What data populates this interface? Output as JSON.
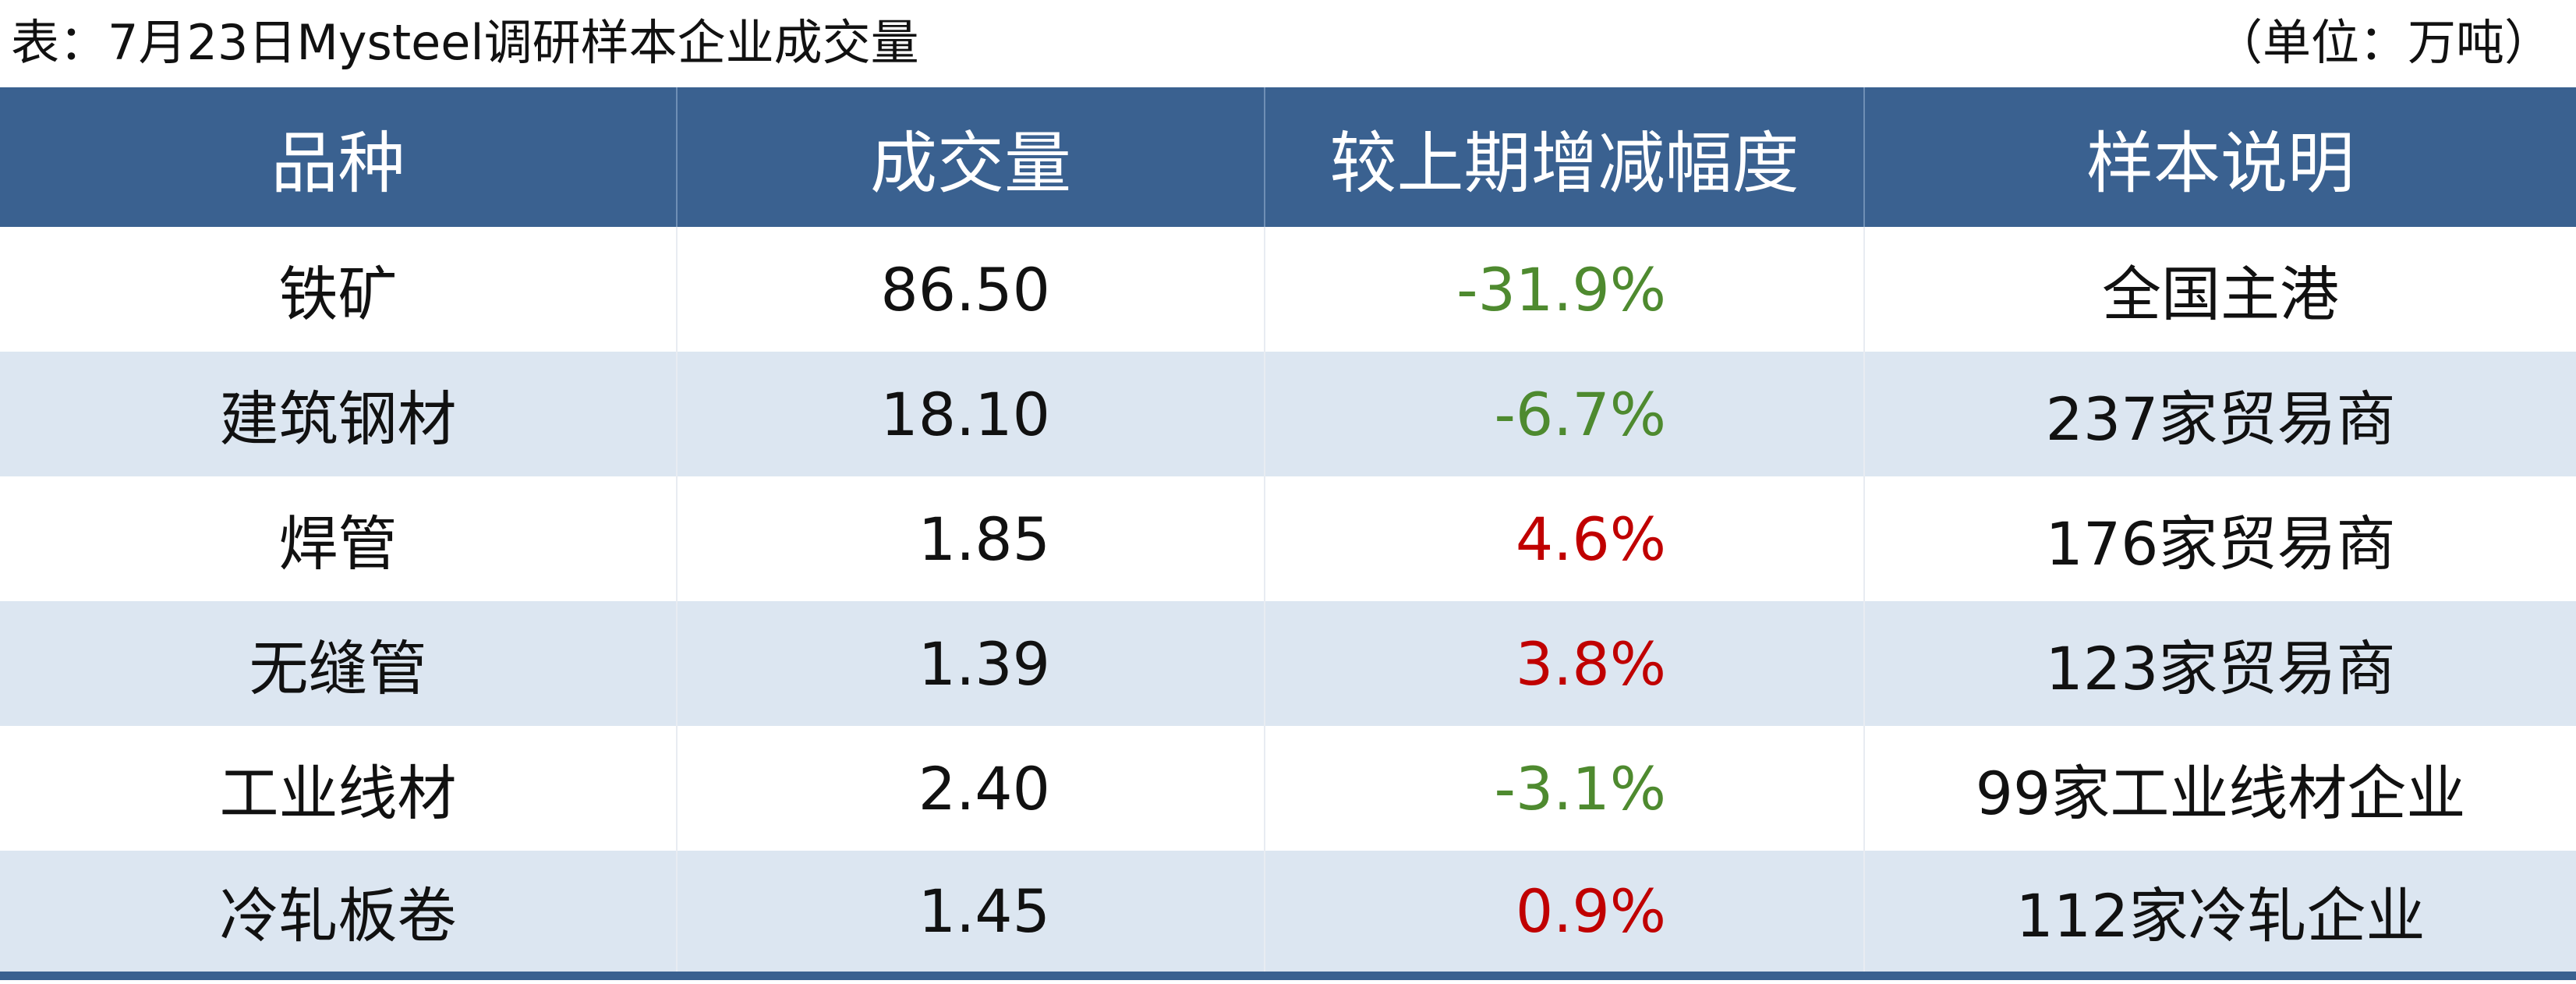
{
  "title": "表：7月23日Mysteel调研样本企业成交量",
  "unit": "（单位：万吨）",
  "table": {
    "header": [
      "品种",
      "成交量",
      "较上期增减幅度",
      "样本说明"
    ],
    "rows": [
      [
        "铁矿",
        "86.50",
        "-31.9%",
        "全国主港"
      ],
      [
        "建筑钢材",
        "18.10",
        "-6.7%",
        "237家贸易商"
      ],
      [
        "焊管",
        "1.85",
        "4.6%",
        "176家贸易商"
      ],
      [
        "无缝管",
        "1.39",
        "3.8%",
        "123家贸易商"
      ],
      [
        "工业线材",
        "2.40",
        "-3.1%",
        "99家工业线材企业"
      ],
      [
        "冷轧板卷",
        "1.45",
        "0.9%",
        "112家冷轧企业"
      ]
    ]
  }
}
